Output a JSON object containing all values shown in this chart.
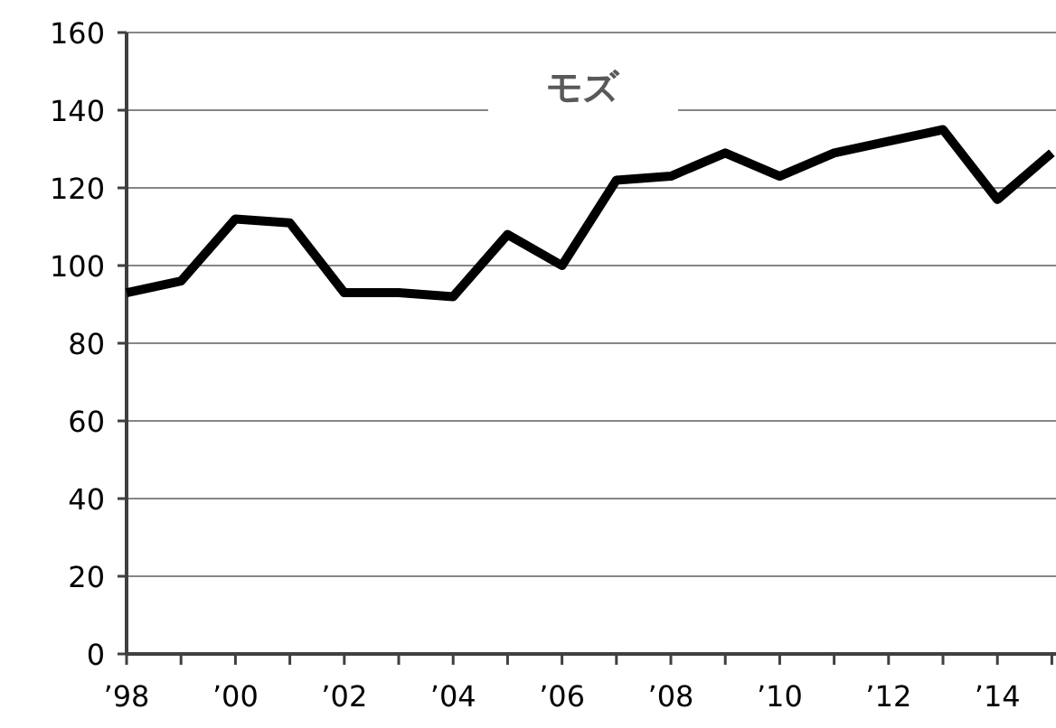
{
  "chart_data": {
    "type": "line",
    "title": "モズ",
    "categories": [
      "’98",
      null,
      "’00",
      null,
      "’02",
      null,
      "’04",
      null,
      "’06",
      null,
      "’08",
      null,
      "’10",
      null,
      "’12",
      null,
      "’14",
      null
    ],
    "series": [
      {
        "color": "#000000",
        "values": [
          93,
          96,
          112,
          111,
          93,
          93,
          92,
          108,
          100,
          122,
          123,
          129,
          123,
          129,
          132,
          135,
          117,
          129
        ]
      }
    ],
    "ylim": [
      0,
      160
    ],
    "yticks": [
      0,
      20,
      40,
      60,
      80,
      100,
      120,
      140,
      160
    ],
    "grid": "y",
    "marker": "none",
    "line_style": "solid"
  }
}
